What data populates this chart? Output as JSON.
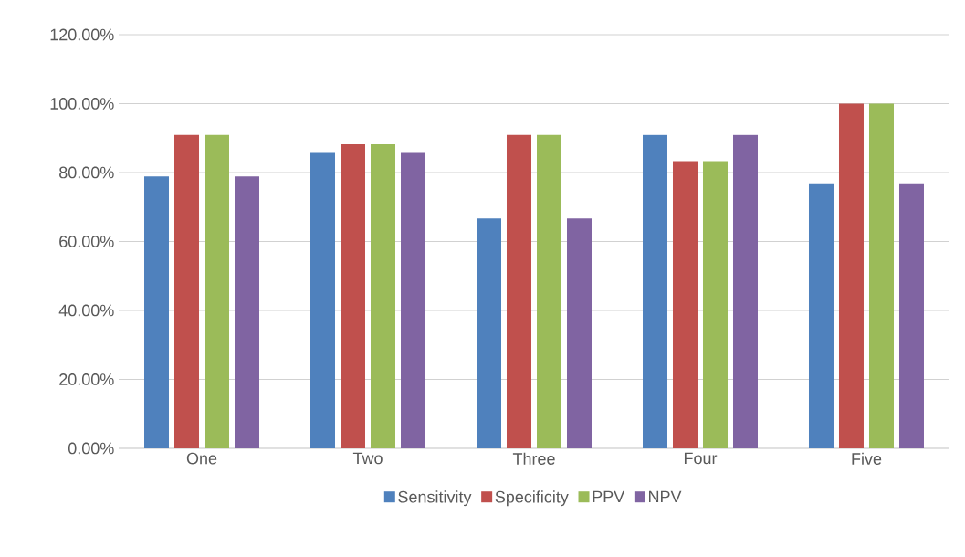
{
  "chart_data": {
    "type": "bar",
    "categories": [
      "One",
      "Two",
      "Three",
      "Four",
      "Five"
    ],
    "series": [
      {
        "name": "Sensitivity",
        "color": "#4f81bd",
        "values": [
          78.9,
          85.7,
          66.7,
          90.9,
          76.9
        ]
      },
      {
        "name": "Specificity",
        "color": "#c0504d",
        "values": [
          90.9,
          88.2,
          90.9,
          83.3,
          100
        ]
      },
      {
        "name": "PPV",
        "color": "#9bbb59",
        "values": [
          90.9,
          88.2,
          90.9,
          83.3,
          100
        ]
      },
      {
        "name": "NPV",
        "color": "#8064a2",
        "values": [
          78.9,
          85.7,
          66.7,
          90.9,
          76.9
        ]
      }
    ],
    "ylim": [
      0,
      120
    ],
    "yticks": [
      {
        "value": 0,
        "label": "0.00%"
      },
      {
        "value": 20,
        "label": "20.00%"
      },
      {
        "value": 40,
        "label": "40.00%"
      },
      {
        "value": 60,
        "label": "60.00%"
      },
      {
        "value": 80,
        "label": "80.00%"
      },
      {
        "value": 100,
        "label": "100.00%"
      },
      {
        "value": 120,
        "label": "120.00%"
      }
    ],
    "grid": "y",
    "legend": "bottom"
  }
}
